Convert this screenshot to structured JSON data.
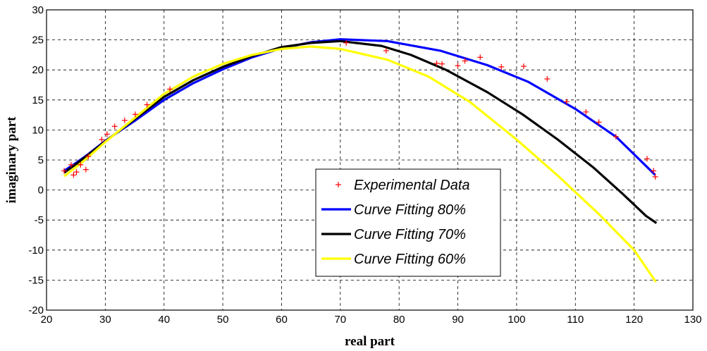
{
  "chart_data": {
    "type": "line",
    "xlabel": "real part",
    "ylabel": "imaginary part",
    "xlim": [
      20,
      130
    ],
    "ylim": [
      -20,
      30
    ],
    "xticks": [
      20,
      30,
      40,
      50,
      60,
      70,
      80,
      90,
      100,
      110,
      120,
      130
    ],
    "yticks": [
      -20,
      -15,
      -10,
      -5,
      0,
      5,
      10,
      15,
      20,
      25,
      30
    ],
    "grid": true,
    "legend_position": "center-right",
    "series": [
      {
        "name": "Experimental Data",
        "kind": "scatter",
        "marker": "+",
        "color": "#ff0000",
        "points": [
          [
            23.0,
            3.2
          ],
          [
            24.2,
            4.2
          ],
          [
            24.6,
            2.5
          ],
          [
            25.1,
            3.0
          ],
          [
            25.8,
            4.2
          ],
          [
            26.7,
            3.4
          ],
          [
            27.1,
            5.6
          ],
          [
            29.4,
            8.4
          ],
          [
            30.3,
            9.3
          ],
          [
            31.6,
            10.6
          ],
          [
            33.3,
            11.6
          ],
          [
            35.1,
            12.6
          ],
          [
            37.1,
            14.2
          ],
          [
            41.0,
            16.8
          ],
          [
            71.0,
            24.5
          ],
          [
            77.8,
            23.2
          ],
          [
            86.4,
            21.1
          ],
          [
            87.3,
            21.0
          ],
          [
            90.0,
            20.7
          ],
          [
            91.2,
            21.5
          ],
          [
            93.8,
            22.1
          ],
          [
            97.4,
            20.5
          ],
          [
            101.2,
            20.6
          ],
          [
            105.2,
            18.5
          ],
          [
            108.5,
            14.7
          ],
          [
            111.8,
            13.0
          ],
          [
            114.0,
            11.3
          ],
          [
            116.9,
            8.9
          ],
          [
            122.2,
            5.2
          ],
          [
            123.3,
            3.2
          ],
          [
            123.6,
            2.2
          ]
        ]
      },
      {
        "name": "Curve Fitting 80%",
        "kind": "line",
        "color": "#0000ff",
        "points": [
          [
            23.0,
            3.2
          ],
          [
            25.0,
            4.5
          ],
          [
            27.0,
            5.9
          ],
          [
            30.0,
            8.2
          ],
          [
            35.0,
            11.5
          ],
          [
            40.0,
            15.0
          ],
          [
            45.0,
            17.8
          ],
          [
            50.0,
            20.1
          ],
          [
            55.0,
            22.1
          ],
          [
            60.0,
            23.6
          ],
          [
            65.0,
            24.6
          ],
          [
            70.0,
            25.1
          ],
          [
            78.0,
            24.8
          ],
          [
            87.0,
            23.2
          ],
          [
            95.0,
            20.8
          ],
          [
            102.0,
            18.0
          ],
          [
            110.0,
            13.5
          ],
          [
            117.0,
            8.8
          ],
          [
            123.6,
            2.5
          ]
        ]
      },
      {
        "name": "Curve Fitting 70%",
        "kind": "line",
        "color": "#000000",
        "points": [
          [
            23.0,
            2.9
          ],
          [
            25.0,
            4.3
          ],
          [
            27.0,
            5.8
          ],
          [
            30.0,
            8.1
          ],
          [
            35.0,
            11.8
          ],
          [
            40.0,
            15.5
          ],
          [
            45.0,
            18.3
          ],
          [
            50.0,
            20.5
          ],
          [
            55.0,
            22.3
          ],
          [
            60.0,
            23.8
          ],
          [
            65.0,
            24.5
          ],
          [
            70.0,
            24.8
          ],
          [
            77.0,
            24.0
          ],
          [
            82.0,
            22.5
          ],
          [
            88.0,
            20.0
          ],
          [
            95.0,
            16.3
          ],
          [
            101.0,
            12.6
          ],
          [
            107.0,
            8.4
          ],
          [
            113.0,
            3.8
          ],
          [
            118.0,
            -0.6
          ],
          [
            122.0,
            -4.3
          ],
          [
            123.8,
            -5.5
          ]
        ]
      },
      {
        "name": "Curve Fitting 60%",
        "kind": "line",
        "color": "#ffff00",
        "points": [
          [
            23.0,
            2.3
          ],
          [
            25.0,
            3.8
          ],
          [
            27.0,
            5.4
          ],
          [
            30.0,
            8.0
          ],
          [
            35.0,
            12.0
          ],
          [
            40.0,
            16.0
          ],
          [
            45.0,
            18.9
          ],
          [
            50.0,
            21.0
          ],
          [
            55.0,
            22.5
          ],
          [
            60.0,
            23.5
          ],
          [
            65.0,
            23.9
          ],
          [
            70.0,
            23.5
          ],
          [
            78.0,
            21.7
          ],
          [
            85.0,
            18.9
          ],
          [
            92.0,
            14.7
          ],
          [
            100.0,
            8.4
          ],
          [
            107.0,
            2.4
          ],
          [
            114.0,
            -4.0
          ],
          [
            120.0,
            -10.0
          ],
          [
            123.7,
            -15.3
          ]
        ]
      }
    ]
  }
}
